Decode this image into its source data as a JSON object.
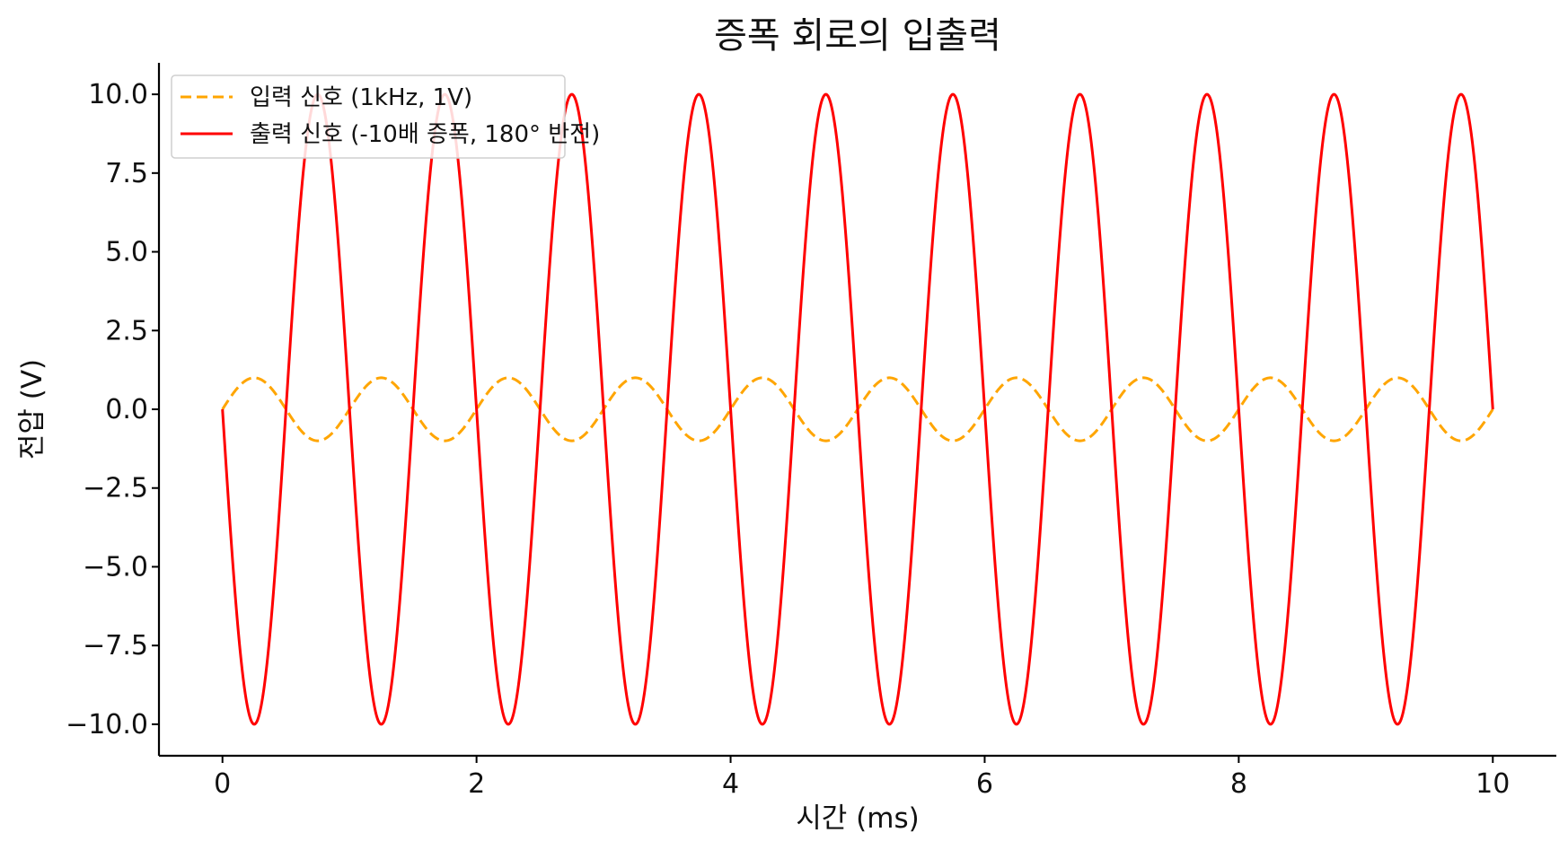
{
  "chart_data": {
    "type": "line",
    "title": "증폭 회로의 입출력",
    "xlabel": "시간 (ms)",
    "ylabel": "전압 (V)",
    "xlim": [
      -0.5,
      10.5
    ],
    "ylim": [
      -11.0,
      11.0
    ],
    "x_ticks": [
      0,
      2,
      4,
      6,
      8,
      10
    ],
    "x_tick_labels": [
      "0",
      "2",
      "4",
      "6",
      "8",
      "10"
    ],
    "y_ticks": [
      10.0,
      7.5,
      5.0,
      2.5,
      0.0,
      -2.5,
      -5.0,
      -7.5,
      -10.0
    ],
    "y_tick_labels": [
      "10.0",
      "7.5",
      "5.0",
      "2.5",
      "0.0",
      "−2.5",
      "−5.0",
      "−7.5",
      "−10.0"
    ],
    "grid": false,
    "legend_position": "top-left",
    "x_range": [
      0,
      10
    ],
    "series": [
      {
        "name": "입력 신호 (1kHz, 1V)",
        "color": "#FFA500",
        "line_style": "dashed",
        "frequency_khz": 1,
        "amplitude_v": 1,
        "phase_deg": 0,
        "sample_points": [
          [
            0,
            0.0
          ],
          [
            0.25,
            1.0
          ],
          [
            0.5,
            0.0
          ],
          [
            0.75,
            -1.0
          ],
          [
            1.0,
            0.0
          ]
        ]
      },
      {
        "name": "출력 신호 (-10배 증폭, 180° 반전)",
        "color": "#FF0000",
        "line_style": "solid",
        "frequency_khz": 1,
        "amplitude_v": 10,
        "phase_deg": 180,
        "sample_points": [
          [
            0,
            0.0
          ],
          [
            0.25,
            -10.0
          ],
          [
            0.5,
            0.0
          ],
          [
            0.75,
            10.0
          ],
          [
            1.0,
            0.0
          ]
        ]
      }
    ]
  }
}
